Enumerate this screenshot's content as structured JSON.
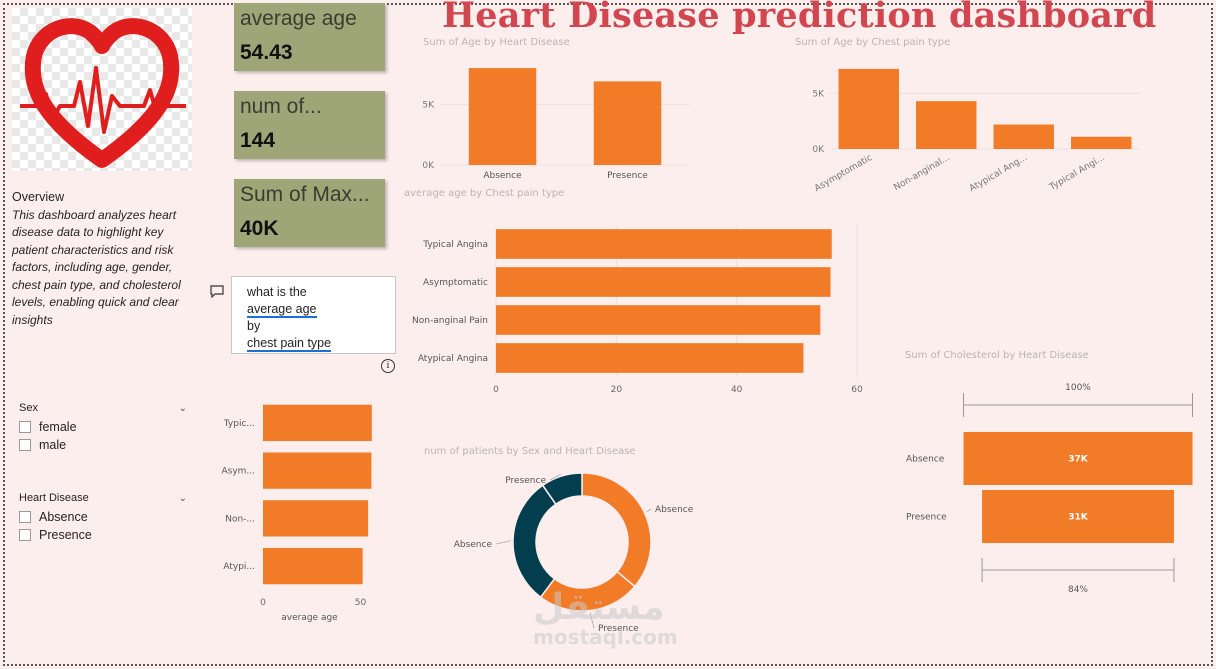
{
  "dashboard_title": "Heart Disease prediction dashboard",
  "overview": {
    "heading": "Overview",
    "text": " This dashboard analyzes heart disease data to highlight key patient characteristics and risk factors, including age, gender, chest pain type, and cholesterol levels, enabling quick and clear insights"
  },
  "kpis": [
    {
      "label": "average age",
      "value": "54.43"
    },
    {
      "label": "num of...",
      "value": "144"
    },
    {
      "label": "Sum of Max...",
      "value": "40K"
    }
  ],
  "qa": {
    "line1": "what is the",
    "term1": "average age",
    "line3": "by",
    "term2": "chest pain type",
    "info_glyph": "i"
  },
  "slicers": [
    {
      "title": "Sex",
      "options": [
        "female",
        "male"
      ]
    },
    {
      "title": "Heart Disease",
      "options": [
        "Absence",
        "Presence"
      ]
    }
  ],
  "watermark": {
    "arabic": "مستقل",
    "latin": "mostaql.com"
  },
  "colors": {
    "bar": "#f27b27",
    "teal": "#023e4e",
    "title": "#d24650",
    "kpi_bg": "#9ea678"
  },
  "chart_data": [
    {
      "id": "age_by_hd",
      "type": "bar",
      "title": "Sum of Age by Heart Disease",
      "categories": [
        "Absence",
        "Presence"
      ],
      "values": [
        8000,
        6900
      ],
      "yticks": [
        "0K",
        "5K"
      ],
      "ylim": [
        0,
        8500
      ]
    },
    {
      "id": "age_by_cp",
      "type": "bar",
      "title": "Sum of Age by Chest pain type",
      "categories": [
        "Asymptomatic",
        "Non-anginal...",
        "Atypical Ang...",
        "Typical Angi..."
      ],
      "values": [
        7200,
        4300,
        2200,
        1100
      ],
      "yticks": [
        "0K",
        "5K"
      ],
      "ylim": [
        0,
        8000
      ]
    },
    {
      "id": "avg_age_by_cp",
      "type": "bar",
      "orientation": "horizontal",
      "title": "average age by Chest pain type",
      "categories": [
        "Typical Angina",
        "Asymptomatic",
        "Non-anginal Pain",
        "Atypical Angina"
      ],
      "values": [
        55.8,
        55.6,
        53.9,
        51.1
      ],
      "xticks": [
        0,
        20,
        40,
        60
      ],
      "xlim": [
        0,
        60
      ]
    },
    {
      "id": "avg_age_small",
      "type": "bar",
      "orientation": "horizontal",
      "categories": [
        "Typic...",
        "Asym...",
        "Non-...",
        "Atypi..."
      ],
      "values": [
        55.8,
        55.6,
        53.9,
        51.1
      ],
      "xticks": [
        0,
        50
      ],
      "xlim": [
        0,
        60
      ],
      "xlabel": "average age"
    },
    {
      "id": "patients_by_sex_hd",
      "type": "pie",
      "title": "num of patients by Sex and Heart Disease",
      "slices": [
        {
          "label": "Absence",
          "value": 30
        },
        {
          "label": "Presence",
          "value": 20
        },
        {
          "label": "Absence",
          "value": 25
        },
        {
          "label": "Presence",
          "value": 8
        }
      ]
    },
    {
      "id": "chol_by_hd",
      "type": "bar",
      "subtype": "funnel",
      "title": "Sum of Cholesterol by Heart Disease",
      "categories": [
        "Absence",
        "Presence"
      ],
      "values": [
        37,
        31
      ],
      "value_labels": [
        "37K",
        "31K"
      ],
      "top_pct": "100%",
      "bottom_pct": "84%"
    }
  ]
}
